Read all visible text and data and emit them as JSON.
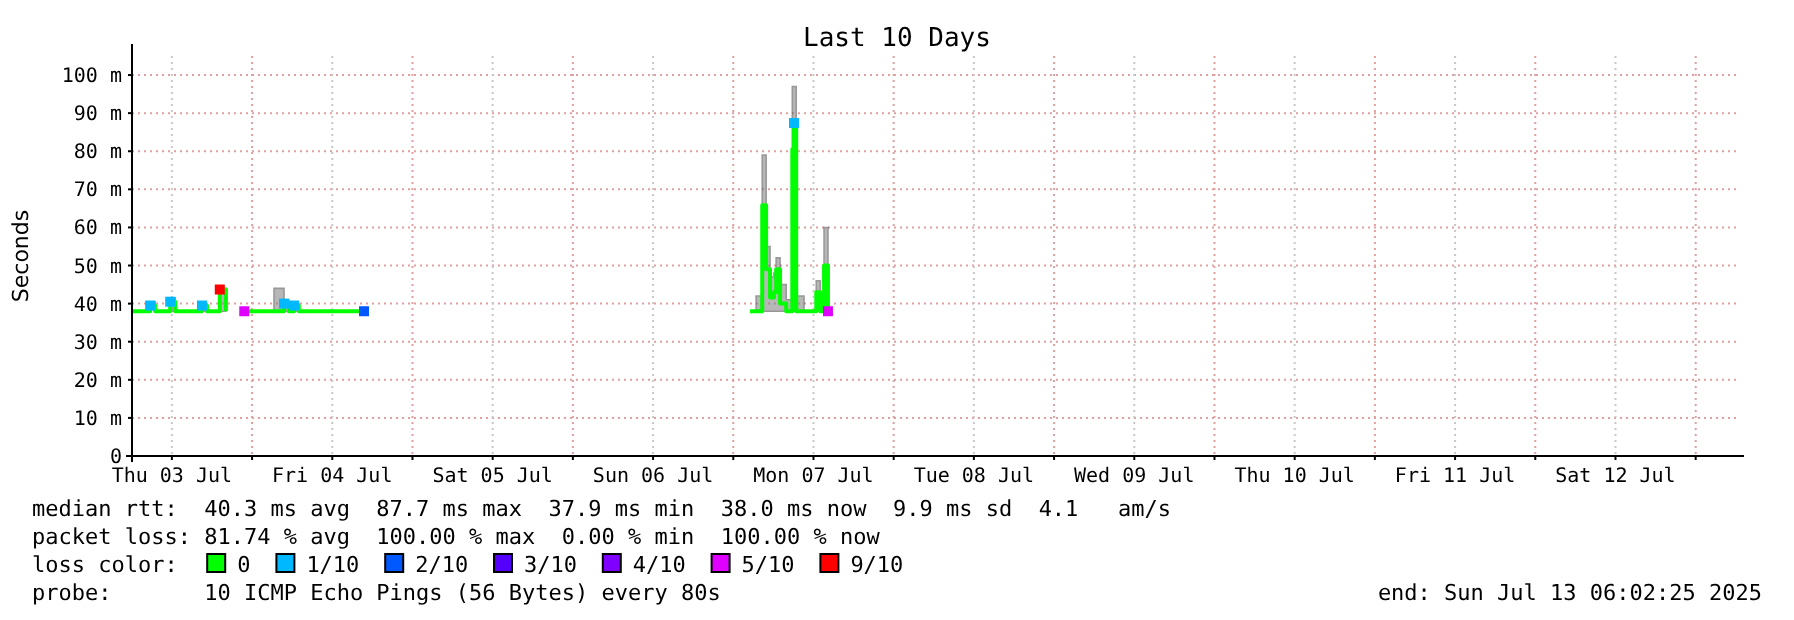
{
  "chart_data": {
    "type": "step",
    "title": "Last 10 Days",
    "ylabel": "Seconds",
    "legend_title": "loss color:",
    "legend": "bottom",
    "grid": true,
    "xlim": [
      "2025-07-03T06:02",
      "2025-07-13T06:02"
    ],
    "xticks": [
      {
        "value": "2025-07-03T12:00",
        "label": "Thu 03 Jul"
      },
      {
        "value": "2025-07-04T00:00",
        "label": null
      },
      {
        "value": "2025-07-04T12:00",
        "label": "Fri 04 Jul"
      },
      {
        "value": "2025-07-05T00:00",
        "label": null
      },
      {
        "value": "2025-07-05T12:00",
        "label": "Sat 05 Jul"
      },
      {
        "value": "2025-07-06T00:00",
        "label": null
      },
      {
        "value": "2025-07-06T12:00",
        "label": "Sun 06 Jul"
      },
      {
        "value": "2025-07-07T00:00",
        "label": null
      },
      {
        "value": "2025-07-07T12:00",
        "label": "Mon 07 Jul"
      },
      {
        "value": "2025-07-08T00:00",
        "label": null
      },
      {
        "value": "2025-07-08T12:00",
        "label": "Tue 08 Jul"
      },
      {
        "value": "2025-07-09T00:00",
        "label": null
      },
      {
        "value": "2025-07-09T12:00",
        "label": "Wed 09 Jul"
      },
      {
        "value": "2025-07-10T00:00",
        "label": null
      },
      {
        "value": "2025-07-10T12:00",
        "label": "Thu 10 Jul"
      },
      {
        "value": "2025-07-11T00:00",
        "label": null
      },
      {
        "value": "2025-07-11T12:00",
        "label": "Fri 11 Jul"
      },
      {
        "value": "2025-07-12T00:00",
        "label": null
      },
      {
        "value": "2025-07-12T12:00",
        "label": "Sat 12 Jul"
      },
      {
        "value": "2025-07-13T00:00",
        "label": null
      }
    ],
    "ylim": [
      0,
      105
    ],
    "yticks": [
      0,
      {
        "value": 10,
        "label": "10 m"
      },
      {
        "value": 20,
        "label": "20 m"
      },
      {
        "value": 30,
        "label": "30 m"
      },
      {
        "value": 40,
        "label": "40 m"
      },
      {
        "value": 50,
        "label": "50 m"
      },
      {
        "value": 60,
        "label": "60 m"
      },
      {
        "value": 70,
        "label": "70 m"
      },
      {
        "value": 80,
        "label": "80 m"
      },
      {
        "value": 90,
        "label": "90 m"
      },
      {
        "value": 100,
        "label": "100 m"
      }
    ],
    "series": [
      {
        "name": "0",
        "color": "#00ff00",
        "x": [
          "2025-07-03T06:02",
          "2025-07-03T08:45",
          "2025-07-03T09:30",
          "2025-07-03T11:45",
          "2025-07-03T12:30",
          "2025-07-03T16:30",
          "2025-07-03T17:15",
          "2025-07-03T19:10",
          "2025-07-03T20:05",
          "2025-07-03T21:00",
          "2025-07-03T22:50",
          "2025-07-04T03:17",
          "2025-07-04T04:47",
          "2025-07-04T05:30",
          "2025-07-04T06:17",
          "2025-07-04T07:00",
          "2025-07-04T16:45",
          "2025-07-04T17:30",
          "2025-07-07T02:30",
          "2025-07-07T03:25",
          "2025-07-07T04:20",
          "2025-07-07T04:55",
          "2025-07-07T05:30",
          "2025-07-07T06:05",
          "2025-07-07T06:25",
          "2025-07-07T07:00",
          "2025-07-07T07:55",
          "2025-07-07T08:50",
          "2025-07-07T09:05",
          "2025-07-07T09:25",
          "2025-07-07T10:35",
          "2025-07-07T11:30",
          "2025-07-07T12:25",
          "2025-07-07T13:00",
          "2025-07-07T13:35",
          "2025-07-07T14:10"
        ],
        "values": [
          38,
          39.5,
          38,
          40.5,
          38,
          39.5,
          38,
          43.7,
          38,
          null,
          38,
          38,
          40,
          38,
          39.5,
          38,
          38,
          null,
          38,
          38,
          65.8,
          49,
          41.6,
          43,
          49,
          40,
          38,
          80.5,
          87.4,
          38,
          38,
          38,
          43,
          38,
          50,
          38
        ],
        "lower": [
          38,
          38.5,
          38,
          38,
          38,
          38,
          38,
          38,
          38,
          null,
          38,
          38,
          38,
          38,
          38,
          38,
          38,
          null,
          38,
          38,
          38,
          38,
          38,
          38,
          38,
          38,
          38,
          38,
          38,
          38,
          38,
          38,
          38,
          38,
          38,
          38
        ],
        "upper": [
          38,
          40.5,
          38,
          41.5,
          38,
          40,
          38,
          44,
          38,
          null,
          38,
          44,
          41,
          38,
          40,
          38,
          38,
          null,
          38,
          42,
          79,
          55,
          47,
          48,
          52,
          45,
          41,
          97,
          97,
          42,
          38,
          38,
          46,
          40,
          60,
          38
        ]
      },
      {
        "name": "1/10",
        "type": "scatter",
        "marker": "square",
        "color": "#00b8ff",
        "x": [
          "2025-07-03T08:45",
          "2025-07-03T11:45",
          "2025-07-03T16:30",
          "2025-07-04T04:47",
          "2025-07-04T06:17",
          "2025-07-07T09:05"
        ],
        "values": [
          39.5,
          40.5,
          39.5,
          40,
          39.5,
          87.4
        ]
      },
      {
        "name": "2/10",
        "type": "scatter",
        "marker": "square",
        "color": "#0059ff",
        "x": [
          "2025-07-04T16:45"
        ],
        "values": [
          38
        ]
      },
      {
        "name": "3/10",
        "type": "scatter",
        "color": "#5500ff"
      },
      {
        "name": "4/10",
        "type": "scatter",
        "color": "#8000ff"
      },
      {
        "name": "5/10",
        "type": "scatter",
        "marker": "square",
        "color": "#e000ff",
        "x": [
          "2025-07-03T22:50",
          "2025-07-07T14:10"
        ],
        "values": [
          38,
          38
        ]
      },
      {
        "name": "9/10",
        "type": "scatter",
        "marker": "square",
        "color": "#ff0000",
        "x": [
          "2025-07-03T19:10"
        ],
        "values": [
          43.7
        ]
      }
    ],
    "annotations": [
      "median rtt:  40.3 ms avg  87.7 ms max  37.9 ms min  38.0 ms now  9.9 ms sd  4.1   am/s",
      "packet loss: 81.74 % avg  100.00 % max  0.00 % min  100.00 % now",
      "probe:       10 ICMP Echo Pings (56 Bytes) every 80s",
      "end: Sun Jul 13 06:02:25 2025"
    ]
  }
}
